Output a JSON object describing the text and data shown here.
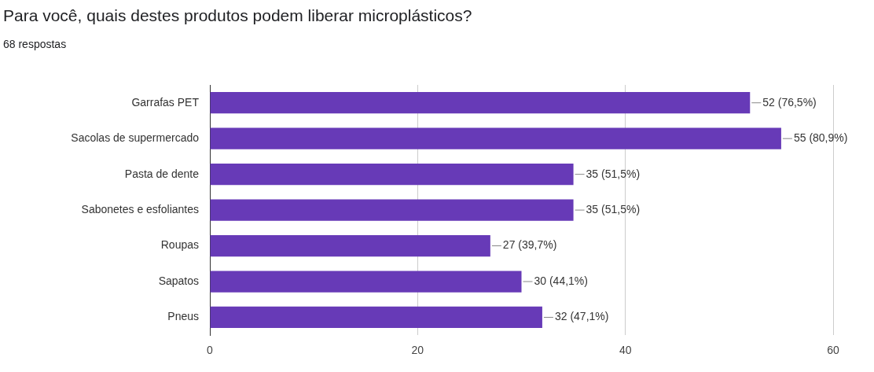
{
  "chart_data": {
    "type": "bar",
    "orientation": "horizontal",
    "title": "Para você, quais destes produtos podem liberar microplásticos?",
    "subtitle": "68 respostas",
    "categories": [
      "Garrafas PET",
      "Sacolas de supermercado",
      "Pasta de dente",
      "Sabonetes e esfoliantes",
      "Roupas",
      "Sapatos",
      "Pneus"
    ],
    "values": [
      52,
      55,
      35,
      35,
      27,
      30,
      32
    ],
    "value_labels": [
      "52 (76,5%)",
      "55 (80,9%)",
      "35 (51,5%)",
      "35 (51,5%)",
      "27 (39,7%)",
      "30 (44,1%)",
      "32 (47,1%)"
    ],
    "color": "#673ab7",
    "xlim": [
      0,
      60
    ],
    "xticks": [
      0,
      20,
      40,
      60
    ],
    "grid": "x",
    "legend": false
  }
}
